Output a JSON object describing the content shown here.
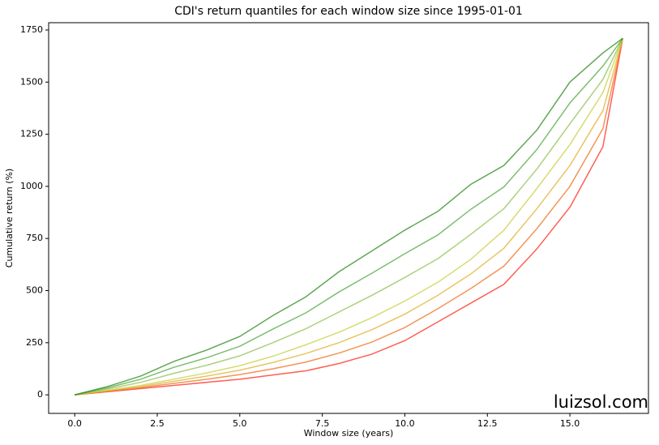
{
  "chart_data": {
    "type": "line",
    "title": "CDI's return quantiles for each window size since 1995-01-01",
    "xlabel": "Window size (years)",
    "ylabel": "Cumulative return (%)",
    "watermark": "luizsol.com",
    "x": [
      0,
      1,
      2,
      3,
      4,
      5,
      6,
      7,
      8,
      9,
      10,
      11,
      12,
      13,
      14,
      15,
      16,
      16.6
    ],
    "series": [
      {
        "color": "#ff2a1a",
        "values": [
          0,
          15,
          30,
          45,
          60,
          75,
          95,
          115,
          150,
          195,
          260,
          350,
          440,
          530,
          700,
          900,
          1190,
          1710
        ]
      },
      {
        "color": "#f07020",
        "values": [
          0,
          17,
          35,
          55,
          75,
          97,
          125,
          157,
          200,
          253,
          323,
          413,
          510,
          617,
          797,
          1000,
          1277,
          1710
        ]
      },
      {
        "color": "#e0b030",
        "values": [
          0,
          20,
          40,
          65,
          90,
          118,
          155,
          198,
          250,
          312,
          387,
          477,
          580,
          703,
          893,
          1100,
          1363,
          1710
        ]
      },
      {
        "color": "#c8d040",
        "values": [
          0,
          22,
          45,
          75,
          105,
          140,
          185,
          240,
          300,
          370,
          450,
          540,
          650,
          790,
          990,
          1200,
          1450,
          1710
        ]
      },
      {
        "color": "#90c050",
        "values": [
          0,
          28,
          60,
          103,
          142,
          187,
          250,
          317,
          397,
          477,
          563,
          653,
          770,
          893,
          1083,
          1300,
          1513,
          1710
        ]
      },
      {
        "color": "#50a840",
        "values": [
          0,
          34,
          75,
          132,
          178,
          233,
          315,
          393,
          493,
          583,
          677,
          767,
          890,
          997,
          1177,
          1400,
          1577,
          1710
        ]
      },
      {
        "color": "#2a8a1a",
        "values": [
          0,
          40,
          90,
          160,
          215,
          280,
          380,
          470,
          590,
          690,
          790,
          880,
          1010,
          1100,
          1270,
          1500,
          1640,
          1710
        ]
      }
    ],
    "xlim": [
      -0.79,
      17.38
    ],
    "ylim": [
      -89,
      1785
    ],
    "xticks": [
      {
        "value": 0,
        "label": "0.0"
      },
      {
        "value": 2.5,
        "label": "2.5"
      },
      {
        "value": 5,
        "label": "5.0"
      },
      {
        "value": 7.5,
        "label": "7.5"
      },
      {
        "value": 10,
        "label": "10.0"
      },
      {
        "value": 12.5,
        "label": "12.5"
      },
      {
        "value": 15,
        "label": "15.0"
      }
    ],
    "yticks": [
      0,
      250,
      500,
      750,
      1000,
      1250,
      1500,
      1750
    ],
    "grid": false
  }
}
